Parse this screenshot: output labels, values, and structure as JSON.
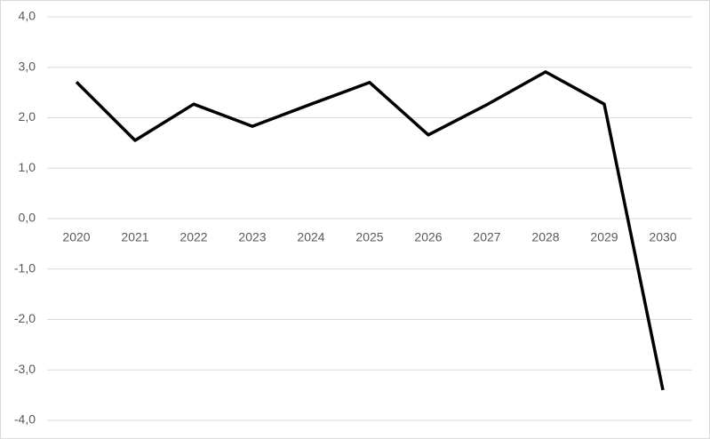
{
  "chart_data": {
    "type": "line",
    "categories": [
      "2020",
      "2021",
      "2022",
      "2023",
      "2024",
      "2025",
      "2026",
      "2027",
      "2028",
      "2029",
      "2030"
    ],
    "series": [
      {
        "color": "#000000",
        "values": [
          2.71,
          1.55,
          2.27,
          1.83,
          2.27,
          2.7,
          1.66,
          2.26,
          2.91,
          2.27,
          -3.4
        ]
      }
    ],
    "ylim": [
      -4,
      4
    ],
    "yticks": [
      {
        "value": -4,
        "label": "-4,0"
      },
      {
        "value": -3,
        "label": "-3,0"
      },
      {
        "value": -2,
        "label": "-2,0"
      },
      {
        "value": -1,
        "label": "-1,0"
      },
      {
        "value": 0,
        "label": "0,0"
      },
      {
        "value": 1,
        "label": "1,0"
      },
      {
        "value": 2,
        "label": "2,0"
      },
      {
        "value": 3,
        "label": "3,0"
      },
      {
        "value": 4,
        "label": "4,0"
      }
    ],
    "grid": true
  }
}
